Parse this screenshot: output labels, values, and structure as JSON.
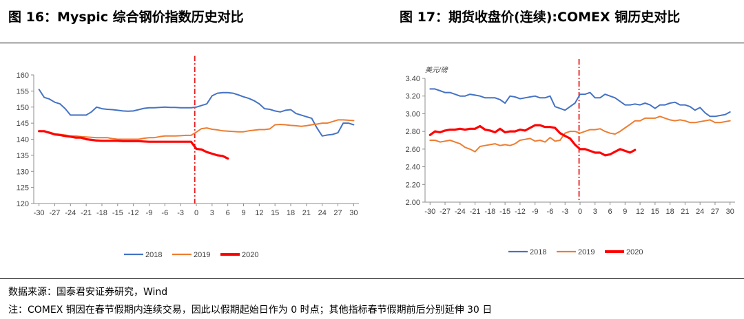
{
  "titles": {
    "left": "图 16：Myspic 综合钢价指数历史对比",
    "right": "图 17：期货收盘价(连续):COMEX 铜历史对比"
  },
  "notes": {
    "source": "数据来源：国泰君安证券研究，Wind",
    "footnote": "注：COMEX 铜因在春节假期内连续交易，因此以假期起始日作为 0 时点；其他指标春节假期前后分别延伸 30 日"
  },
  "colors": {
    "2018": "#4472c4",
    "2019": "#ed7d31",
    "2020": "#ff0000",
    "marker": "#e8191a"
  },
  "chart_data": [
    {
      "type": "line",
      "title": "Myspic 综合钢价指数历史对比",
      "xlabel": "",
      "ylabel": "",
      "xlim": [
        -31,
        31
      ],
      "ylim": [
        120,
        160
      ],
      "yticks": [
        120,
        125,
        130,
        135,
        140,
        145,
        150,
        155,
        160
      ],
      "ytick_labels": [
        "120",
        "125",
        "130",
        "135",
        "140",
        "145",
        "150",
        "155",
        "160"
      ],
      "xticks": [
        -30,
        -27,
        -24,
        -21,
        -18,
        -15,
        -12,
        -9,
        -6,
        -3,
        0,
        3,
        6,
        9,
        12,
        15,
        18,
        21,
        24,
        27,
        30
      ],
      "xtick_labels": [
        "-30",
        "-27",
        "-24",
        "-21",
        "-18",
        "-15",
        "-12",
        "-9",
        "-6",
        "-3",
        "0",
        "3",
        "6",
        "9",
        "12",
        "15",
        "18",
        "21",
        "24",
        "27",
        "30"
      ],
      "marker_x": -0.3,
      "grid": false,
      "legend": "bottom",
      "series": [
        {
          "name": "2018",
          "x": [
            -30,
            -29,
            -28,
            -27,
            -26,
            -25,
            -24,
            -23,
            -22,
            -21,
            -20,
            -19,
            -18,
            -17,
            -16,
            -15,
            -14,
            -13,
            -12,
            -11,
            -10,
            -9,
            -8,
            -7,
            -6,
            -5,
            -4,
            -3,
            -2,
            -1,
            0,
            1,
            2,
            3,
            4,
            5,
            6,
            7,
            8,
            9,
            10,
            11,
            12,
            13,
            14,
            15,
            16,
            17,
            18,
            19,
            20,
            21,
            22,
            23,
            24,
            25,
            26,
            27,
            28,
            29,
            30
          ],
          "y": [
            155.5,
            153,
            152.5,
            151.5,
            151,
            149.5,
            147.5,
            147.5,
            147.5,
            147.5,
            148.5,
            150,
            149.5,
            149.3,
            149.2,
            149,
            148.8,
            148.7,
            148.8,
            149.2,
            149.6,
            149.8,
            149.8,
            149.9,
            150,
            149.9,
            149.9,
            149.8,
            149.8,
            149.8,
            150,
            150.5,
            151,
            153.5,
            154.3,
            154.5,
            154.5,
            154.3,
            153.8,
            153.2,
            152.7,
            152,
            151,
            149.5,
            149.3,
            148.8,
            148.5,
            149,
            149.2,
            148,
            147.5,
            147,
            146.5,
            143.5,
            141,
            141.3,
            141.5,
            142,
            145,
            145,
            144.5
          ]
        },
        {
          "name": "2019",
          "x": [
            -30,
            -29,
            -28,
            -27,
            -26,
            -25,
            -24,
            -23,
            -22,
            -21,
            -20,
            -19,
            -18,
            -17,
            -16,
            -15,
            -14,
            -13,
            -12,
            -11,
            -10,
            -9,
            -8,
            -7,
            -6,
            -5,
            -4,
            -3,
            -2,
            -1,
            0,
            1,
            2,
            3,
            4,
            5,
            6,
            7,
            8,
            9,
            10,
            11,
            12,
            13,
            14,
            15,
            16,
            17,
            18,
            19,
            20,
            21,
            22,
            23,
            24,
            25,
            26,
            27,
            28,
            29,
            30
          ],
          "y": [
            142.6,
            142.5,
            142.2,
            141.7,
            141.5,
            141.3,
            141,
            141,
            140.8,
            140.7,
            140.6,
            140.5,
            140.5,
            140.5,
            140.2,
            140,
            140,
            140,
            140,
            140,
            140.3,
            140.5,
            140.5,
            140.8,
            141,
            141,
            141,
            141.1,
            141.2,
            141.2,
            142.2,
            143.3,
            143.5,
            143.1,
            142.9,
            142.6,
            142.5,
            142.4,
            142.3,
            142.3,
            142.6,
            142.8,
            143,
            143,
            143.2,
            144.5,
            144.6,
            144.5,
            144.3,
            144.2,
            144,
            144.2,
            144.5,
            144.7,
            145,
            145,
            145.5,
            146,
            146,
            145.9,
            145.8
          ]
        },
        {
          "name": "2020",
          "x": [
            -30,
            -29,
            -28,
            -27,
            -26,
            -25,
            -24,
            -23,
            -22,
            -21,
            -20,
            -19,
            -18,
            -17,
            -16,
            -15,
            -14,
            -13,
            -12,
            -11,
            -10,
            -9,
            -8,
            -7,
            -6,
            -5,
            -4,
            -3,
            -2,
            -1,
            0,
            1,
            2,
            3,
            4,
            5,
            6
          ],
          "y": [
            142.5,
            142.5,
            142,
            141.5,
            141.3,
            141,
            140.8,
            140.5,
            140.5,
            140,
            139.8,
            139.6,
            139.5,
            139.5,
            139.5,
            139.5,
            139.4,
            139.4,
            139.4,
            139.4,
            139.3,
            139.2,
            139.2,
            139.2,
            139.2,
            139.2,
            139.2,
            139.2,
            139.2,
            139.2,
            137,
            136.8,
            136,
            135.5,
            135,
            134.8,
            134
          ]
        }
      ]
    },
    {
      "type": "line",
      "title": "期货收盘价(连续):COMEX 铜历史对比",
      "xlabel": "",
      "ylabel": "美元/磅",
      "xlim": [
        -31,
        31
      ],
      "ylim": [
        2.0,
        3.4
      ],
      "yticks": [
        2.0,
        2.2,
        2.4,
        2.6,
        2.8,
        3.0,
        3.2,
        3.4
      ],
      "ytick_labels": [
        "2.00",
        "2.20",
        "2.40",
        "2.60",
        "2.80",
        "3.00",
        "3.20",
        "3.40"
      ],
      "xticks": [
        -30,
        -27,
        -24,
        -21,
        -18,
        -15,
        -12,
        -9,
        -6,
        -3,
        0,
        3,
        6,
        9,
        12,
        15,
        18,
        21,
        24,
        27,
        30
      ],
      "xtick_labels": [
        "-30",
        "-27",
        "-24",
        "-21",
        "-18",
        "-15",
        "-12",
        "-9",
        "-6",
        "-3",
        "0",
        "3",
        "6",
        "9",
        "12",
        "15",
        "18",
        "21",
        "24",
        "27",
        "30"
      ],
      "marker_x": -0.2,
      "grid": false,
      "legend": "bottom",
      "series": [
        {
          "name": "2018",
          "x": [
            -30,
            -29,
            -28,
            -27,
            -26,
            -25,
            -24,
            -23,
            -22,
            -21,
            -20,
            -19,
            -18,
            -17,
            -16,
            -15,
            -14,
            -13,
            -12,
            -11,
            -10,
            -9,
            -8,
            -7,
            -6,
            -5,
            -4,
            -3,
            -2,
            -1,
            0,
            1,
            2,
            3,
            4,
            5,
            6,
            7,
            8,
            9,
            10,
            11,
            12,
            13,
            14,
            15,
            16,
            17,
            18,
            19,
            20,
            21,
            22,
            23,
            24,
            25,
            26,
            27,
            28,
            29,
            30
          ],
          "y": [
            3.28,
            3.28,
            3.26,
            3.24,
            3.24,
            3.22,
            3.2,
            3.2,
            3.22,
            3.21,
            3.2,
            3.18,
            3.18,
            3.18,
            3.16,
            3.12,
            3.2,
            3.19,
            3.17,
            3.18,
            3.19,
            3.2,
            3.18,
            3.18,
            3.2,
            3.08,
            3.06,
            3.04,
            3.08,
            3.12,
            3.22,
            3.22,
            3.24,
            3.18,
            3.18,
            3.22,
            3.2,
            3.18,
            3.14,
            3.1,
            3.1,
            3.11,
            3.1,
            3.12,
            3.1,
            3.06,
            3.1,
            3.1,
            3.12,
            3.13,
            3.1,
            3.1,
            3.08,
            3.04,
            3.07,
            3.01,
            2.97,
            2.97,
            2.98,
            2.99,
            3.02
          ]
        },
        {
          "name": "2019",
          "x": [
            -30,
            -29,
            -28,
            -27,
            -26,
            -25,
            -24,
            -23,
            -22,
            -21,
            -20,
            -19,
            -18,
            -17,
            -16,
            -15,
            -14,
            -13,
            -12,
            -11,
            -10,
            -9,
            -8,
            -7,
            -6,
            -5,
            -4,
            -3,
            -2,
            -1,
            0,
            1,
            2,
            3,
            4,
            5,
            6,
            7,
            8,
            9,
            10,
            11,
            12,
            13,
            14,
            15,
            16,
            17,
            18,
            19,
            20,
            21,
            22,
            23,
            24,
            25,
            26,
            27,
            28,
            29,
            30
          ],
          "y": [
            2.7,
            2.7,
            2.68,
            2.69,
            2.7,
            2.68,
            2.66,
            2.62,
            2.6,
            2.57,
            2.63,
            2.64,
            2.65,
            2.66,
            2.64,
            2.65,
            2.64,
            2.66,
            2.7,
            2.71,
            2.72,
            2.69,
            2.7,
            2.68,
            2.73,
            2.69,
            2.7,
            2.78,
            2.8,
            2.8,
            2.78,
            2.8,
            2.82,
            2.82,
            2.83,
            2.8,
            2.78,
            2.77,
            2.8,
            2.84,
            2.88,
            2.92,
            2.92,
            2.95,
            2.95,
            2.95,
            2.97,
            2.95,
            2.93,
            2.92,
            2.93,
            2.92,
            2.9,
            2.9,
            2.91,
            2.92,
            2.93,
            2.9,
            2.9,
            2.91,
            2.92
          ]
        },
        {
          "name": "2020",
          "x": [
            -30,
            -29,
            -28,
            -27,
            -26,
            -25,
            -24,
            -23,
            -22,
            -21,
            -20,
            -19,
            -18,
            -17,
            -16,
            -15,
            -14,
            -13,
            -12,
            -11,
            -10,
            -9,
            -8,
            -7,
            -6,
            -5,
            -4,
            -3,
            -2,
            -1,
            0,
            1,
            2,
            3,
            4,
            5,
            6,
            7,
            8,
            9,
            10,
            11
          ],
          "y": [
            2.76,
            2.8,
            2.79,
            2.81,
            2.82,
            2.82,
            2.83,
            2.82,
            2.83,
            2.83,
            2.86,
            2.82,
            2.81,
            2.79,
            2.83,
            2.79,
            2.8,
            2.8,
            2.82,
            2.81,
            2.84,
            2.87,
            2.87,
            2.85,
            2.85,
            2.84,
            2.78,
            2.75,
            2.72,
            2.65,
            2.6,
            2.6,
            2.58,
            2.56,
            2.56,
            2.53,
            2.54,
            2.57,
            2.6,
            2.58,
            2.56,
            2.59
          ]
        }
      ]
    }
  ]
}
